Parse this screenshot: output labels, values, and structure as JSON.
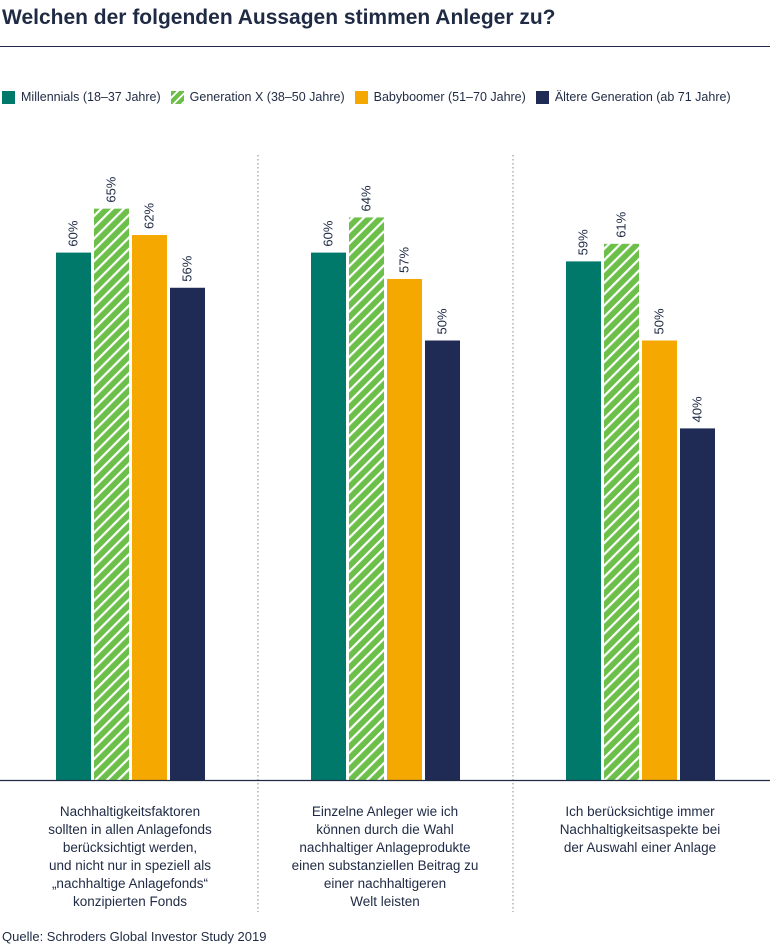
{
  "title": "Welchen der folgenden Aussagen stimmen Anleger zu?",
  "source": "Quelle: Schroders Global Investor Study 2019",
  "chart_data": {
    "type": "bar",
    "title": "Welchen der folgenden Aussagen stimmen Anleger zu?",
    "categories": [
      "Nachhaltigkeitsfaktoren sollten in allen Anlagefonds berücksichtigt werden, und nicht nur in speziell als „nachhaltige Anlagefonds“ konzipierten Fonds",
      "Einzelne Anleger wie ich können durch die Wahl nachhaltiger Anlageprodukte einen substanziellen Beitrag zu einer nachhaltigeren Welt leisten",
      "Ich berücksichtige immer Nachhaltigkeitsaspekte bei der Auswahl einer Anlage"
    ],
    "category_lines": [
      [
        "Nachhaltigkeitsfaktoren",
        "sollten in allen Anlagefonds",
        "berücksichtigt werden,",
        "und nicht nur in speziell als",
        "„nachhaltige Anlagefonds“",
        "konzipierten Fonds"
      ],
      [
        "Einzelne Anleger wie ich",
        "können durch die Wahl",
        "nachhaltiger Anlageprodukte",
        "einen substanziellen Beitrag zu",
        "einer nachhaltigeren",
        "Welt leisten"
      ],
      [
        "Ich berücksichtige immer",
        "Nachhaltigkeitsaspekte bei",
        "der Auswahl einer Anlage"
      ]
    ],
    "series": [
      {
        "name": "Millennials (18–37 Jahre)",
        "values": [
          60,
          60,
          59
        ],
        "labels": [
          "60%",
          "60%",
          "59%"
        ],
        "color": "#00796b",
        "pattern": "solid"
      },
      {
        "name": "Generation X (38–50 Jahre)",
        "values": [
          65,
          64,
          61
        ],
        "labels": [
          "65%",
          "64%",
          "61%"
        ],
        "color": "#6cc04a",
        "pattern": "hatched"
      },
      {
        "name": "Babyboomer (51–70 Jahre)",
        "values": [
          62,
          57,
          50
        ],
        "labels": [
          "62%",
          "57%",
          "50%"
        ],
        "color": "#f5a800",
        "pattern": "solid"
      },
      {
        "name": "Ältere Generation (ab 71 Jahre)",
        "values": [
          56,
          50,
          40
        ],
        "labels": [
          "56%",
          "50%",
          "40%"
        ],
        "color": "#1f2a55",
        "pattern": "solid"
      }
    ],
    "ylim": [
      0,
      70
    ],
    "legend_position": "top",
    "grid": false,
    "separator_color": "#888888",
    "axis_color": "#1f2a44"
  }
}
